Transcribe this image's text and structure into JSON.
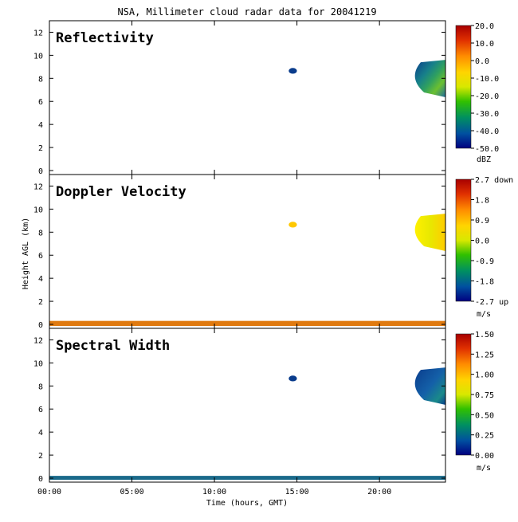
{
  "title": "NSA, Millimeter cloud radar data for 20041219",
  "ylabel": "Height AGL (km)",
  "xlabel": "Time (hours, GMT)",
  "chart_data": [
    {
      "type": "heatmap",
      "title": "Reflectivity",
      "xlim": [
        0,
        24
      ],
      "ylim": [
        0,
        13
      ],
      "x_ticks": [
        "00:00",
        "05:00",
        "10:00",
        "15:00",
        "20:00"
      ],
      "y_ticks": [
        "0",
        "2",
        "4",
        "6",
        "8",
        "10",
        "12"
      ],
      "colorbar": {
        "labels": [
          "20.0",
          "10.0",
          "0.0",
          "-10.0",
          "-20.0",
          "-30.0",
          "-40.0",
          "-50.0"
        ],
        "unit": "dBZ"
      },
      "features": [
        {
          "x": [
            22.0,
            24.0
          ],
          "y": [
            6.5,
            9.6
          ],
          "kind": "cloud"
        },
        {
          "x": [
            14.5,
            15.0
          ],
          "y": [
            8.4,
            8.9
          ],
          "kind": "patch"
        }
      ]
    },
    {
      "type": "heatmap",
      "title": "Doppler Velocity",
      "xlim": [
        0,
        24
      ],
      "ylim": [
        0,
        13
      ],
      "x_ticks": [
        "00:00",
        "05:00",
        "10:00",
        "15:00",
        "20:00"
      ],
      "y_ticks": [
        "0",
        "2",
        "4",
        "6",
        "8",
        "10",
        "12"
      ],
      "colorbar": {
        "labels": [
          "2.7 down",
          "1.8",
          "0.9",
          "0.0",
          "-0.9",
          "-1.8",
          "-2.7 up"
        ],
        "unit": "m/s"
      },
      "features": [
        {
          "x": [
            22.0,
            24.0
          ],
          "y": [
            6.5,
            9.6
          ],
          "kind": "cloud"
        },
        {
          "x": [
            14.5,
            15.0
          ],
          "y": [
            8.4,
            8.9
          ],
          "kind": "patch"
        },
        {
          "x": [
            0.0,
            24.0
          ],
          "y": [
            0.0,
            0.3
          ],
          "kind": "ground"
        }
      ]
    },
    {
      "type": "heatmap",
      "title": "Spectral Width",
      "xlim": [
        0,
        24
      ],
      "ylim": [
        0,
        13
      ],
      "x_ticks": [
        "00:00",
        "05:00",
        "10:00",
        "15:00",
        "20:00"
      ],
      "y_ticks": [
        "0",
        "2",
        "4",
        "6",
        "8",
        "10",
        "12"
      ],
      "colorbar": {
        "labels": [
          "1.50",
          "1.25",
          "1.00",
          "0.75",
          "0.50",
          "0.25",
          "0.00"
        ],
        "unit": "m/s"
      },
      "features": [
        {
          "x": [
            22.0,
            24.0
          ],
          "y": [
            6.5,
            9.6
          ],
          "kind": "cloud"
        },
        {
          "x": [
            14.5,
            15.0
          ],
          "y": [
            8.4,
            8.9
          ],
          "kind": "patch"
        },
        {
          "x": [
            0.0,
            24.0
          ],
          "y": [
            0.0,
            0.2
          ],
          "kind": "ground"
        }
      ]
    }
  ]
}
